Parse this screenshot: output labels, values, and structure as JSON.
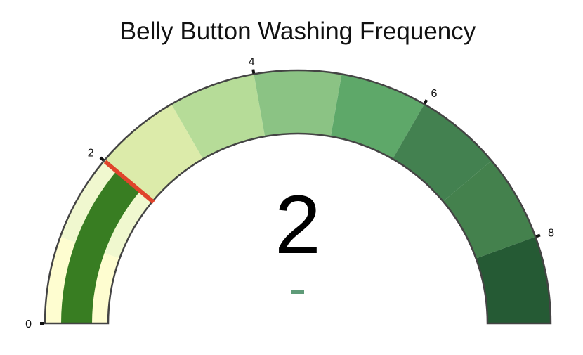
{
  "chart_data": {
    "type": "gauge",
    "title": "Belly Button Washing Frequency",
    "value": 2,
    "value_label": "2",
    "range": [
      0,
      9
    ],
    "ticks": [
      {
        "value": 0,
        "label": "0"
      },
      {
        "value": 2,
        "label": "2"
      },
      {
        "value": 4,
        "label": "4"
      },
      {
        "value": 6,
        "label": "6"
      },
      {
        "value": 8,
        "label": "8"
      }
    ],
    "steps": [
      {
        "range": [
          0,
          1
        ],
        "color": "#fefdd0"
      },
      {
        "range": [
          1,
          2
        ],
        "color": "#f0f8cf"
      },
      {
        "range": [
          2,
          3
        ],
        "color": "#dcebaa"
      },
      {
        "range": [
          3,
          4
        ],
        "color": "#b6dc98"
      },
      {
        "range": [
          4,
          5
        ],
        "color": "#8bc384"
      },
      {
        "range": [
          5,
          6
        ],
        "color": "#5ea869"
      },
      {
        "range": [
          6,
          7
        ],
        "color": "#438150"
      },
      {
        "range": [
          7,
          8
        ],
        "color": "#44814d"
      },
      {
        "range": [
          8,
          9
        ],
        "color": "#255a34"
      }
    ],
    "bar_color": "#387d22",
    "threshold": {
      "value": 2,
      "color": "#e0442b"
    },
    "delta_indicator_color": "#5e9b78"
  }
}
